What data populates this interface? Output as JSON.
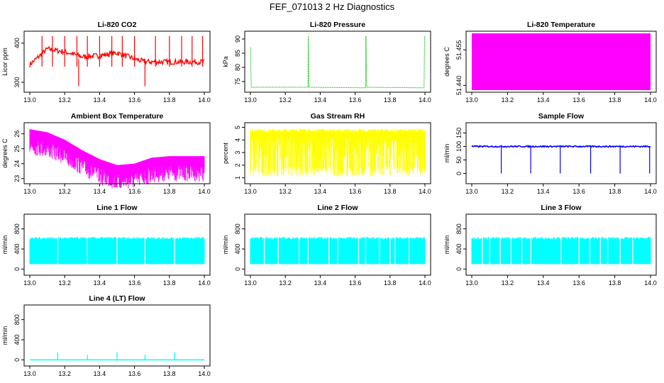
{
  "figure": {
    "title": "FEF_071013  2 Hz Diagnostics"
  },
  "chart_data": [
    {
      "id": "co2",
      "type": "line",
      "title": "Li-820 CO2",
      "ylabel": "Licor ppm",
      "color": "#ff0000",
      "xlim": [
        13.0,
        14.0
      ],
      "ylim": [
        280,
        425
      ],
      "xticks": [
        "13.0",
        "13.2",
        "13.4",
        "13.6",
        "13.8",
        "14.0"
      ],
      "yticks": [
        "300",
        "400"
      ],
      "series": [
        {
          "x": [
            13.0,
            13.1,
            13.2,
            13.3,
            13.4,
            13.5,
            13.6,
            13.65,
            13.7,
            13.8,
            13.9,
            14.0
          ],
          "values": [
            345,
            385,
            378,
            365,
            368,
            375,
            360,
            353,
            352,
            352,
            352,
            352
          ]
        }
      ]
    },
    {
      "id": "pressure",
      "type": "line",
      "title": "Li-820 Pressure",
      "ylabel": "kPa",
      "color": "#00c000",
      "xlim": [
        13.0,
        14.0
      ],
      "ylim": [
        72,
        92
      ],
      "xticks": [
        "13.0",
        "13.2",
        "13.4",
        "13.6",
        "13.8",
        "14.0"
      ],
      "yticks": [
        "75",
        "80",
        "85",
        "90"
      ],
      "series": [
        {
          "x": [
            13.0,
            13.01,
            13.33,
            13.34,
            13.66,
            13.67,
            14.0
          ],
          "values": [
            87,
            73,
            73,
            91,
            73,
            91,
            73
          ]
        }
      ]
    },
    {
      "id": "licor-temp",
      "type": "area",
      "title": "Li-820 Temperature",
      "ylabel": "degrees C",
      "color": "#ff00ff",
      "xlim": [
        13.0,
        14.0
      ],
      "ylim": [
        51.438,
        51.462
      ],
      "xticks": [
        "13.0",
        "13.2",
        "13.4",
        "13.6",
        "13.8",
        "14.0"
      ],
      "yticks": [
        "51.440",
        "51.455"
      ],
      "series": [
        {
          "x": [
            13.0,
            14.0
          ],
          "values": [
            51.44,
            51.46
          ]
        }
      ]
    },
    {
      "id": "ambient-temp",
      "type": "line",
      "title": "Ambient Box Temperature",
      "ylabel": "degrees C",
      "color": "#ff00ff",
      "xlim": [
        13.0,
        14.0
      ],
      "ylim": [
        22.8,
        26.6
      ],
      "xticks": [
        "13.0",
        "13.2",
        "13.4",
        "13.6",
        "13.8",
        "14.0"
      ],
      "yticks": [
        "23",
        "24",
        "25",
        "26"
      ],
      "series": [
        {
          "x": [
            13.0,
            13.1,
            13.2,
            13.3,
            13.4,
            13.5,
            13.6,
            13.7,
            13.8,
            13.9,
            14.0
          ],
          "values": [
            26.3,
            26.1,
            25.6,
            24.9,
            24.3,
            23.9,
            24.0,
            24.4,
            24.5,
            24.5,
            24.5
          ]
        }
      ]
    },
    {
      "id": "rh",
      "type": "line",
      "title": "Gas Stream RH",
      "ylabel": "percent",
      "color": "#ffff00",
      "xlim": [
        13.0,
        14.0
      ],
      "ylim": [
        0.7,
        5.2
      ],
      "xticks": [
        "13.0",
        "13.2",
        "13.4",
        "13.6",
        "13.8",
        "14.0"
      ],
      "yticks": [
        "1",
        "2",
        "3",
        "4",
        "5"
      ],
      "series": [
        {
          "x": [
            13.0,
            14.0
          ],
          "values": [
            4.8,
            4.7
          ]
        }
      ]
    },
    {
      "id": "sample-flow",
      "type": "line",
      "title": "Sample Flow",
      "ylabel": "ml/min",
      "color": "#0000ff",
      "xlim": [
        13.0,
        14.0
      ],
      "ylim": [
        -30,
        180
      ],
      "xticks": [
        "13.0",
        "13.2",
        "13.4",
        "13.6",
        "13.8",
        "14.0"
      ],
      "yticks": [
        "0",
        "50",
        "100",
        "150"
      ],
      "series": [
        {
          "x": [
            13.0,
            13.16,
            13.33,
            13.5,
            13.66,
            13.83,
            14.0
          ],
          "values": [
            100,
            0,
            0,
            0,
            0,
            0,
            0
          ]
        }
      ]
    },
    {
      "id": "line1",
      "type": "area",
      "title": "Line 1 Flow",
      "ylabel": "ml/min",
      "color": "#00ffff",
      "xlim": [
        13.0,
        14.0
      ],
      "ylim": [
        -80,
        1050
      ],
      "xticks": [
        "13.0",
        "13.2",
        "13.4",
        "13.6",
        "13.8",
        "14.0"
      ],
      "yticks": [
        "0",
        "400",
        "800"
      ],
      "series": [
        {
          "x": [
            13.0,
            14.0
          ],
          "values": [
            620,
            100
          ]
        }
      ]
    },
    {
      "id": "line2",
      "type": "area",
      "title": "Line 2 Flow",
      "ylabel": "ml/min",
      "color": "#00ffff",
      "xlim": [
        13.0,
        14.0
      ],
      "ylim": [
        -80,
        1050
      ],
      "xticks": [
        "13.0",
        "13.2",
        "13.4",
        "13.6",
        "13.8",
        "14.0"
      ],
      "yticks": [
        "0",
        "400",
        "800"
      ],
      "series": [
        {
          "x": [
            13.0,
            14.0
          ],
          "values": [
            600,
            100
          ]
        }
      ]
    },
    {
      "id": "line3",
      "type": "area",
      "title": "Line 3 Flow",
      "ylabel": "ml/min",
      "color": "#00ffff",
      "xlim": [
        13.0,
        14.0
      ],
      "ylim": [
        -80,
        1050
      ],
      "xticks": [
        "13.0",
        "13.2",
        "13.4",
        "13.6",
        "13.8",
        "14.0"
      ],
      "yticks": [
        "0",
        "400",
        "800"
      ],
      "series": [
        {
          "x": [
            13.0,
            14.0
          ],
          "values": [
            600,
            100
          ]
        }
      ]
    },
    {
      "id": "line4",
      "type": "line",
      "title": "Line 4 (LT) Flow",
      "ylabel": "ml/min",
      "color": "#00ffff",
      "xlim": [
        13.0,
        14.0
      ],
      "ylim": [
        -80,
        1050
      ],
      "xticks": [
        "13.0",
        "13.2",
        "13.4",
        "13.6",
        "13.8",
        "14.0"
      ],
      "yticks": [
        "0",
        "400",
        "800"
      ],
      "series": [
        {
          "x": [
            13.0,
            13.16,
            13.33,
            13.5,
            13.66,
            13.83,
            14.0
          ],
          "values": [
            0,
            150,
            100,
            150,
            100,
            150,
            0
          ]
        }
      ]
    }
  ]
}
